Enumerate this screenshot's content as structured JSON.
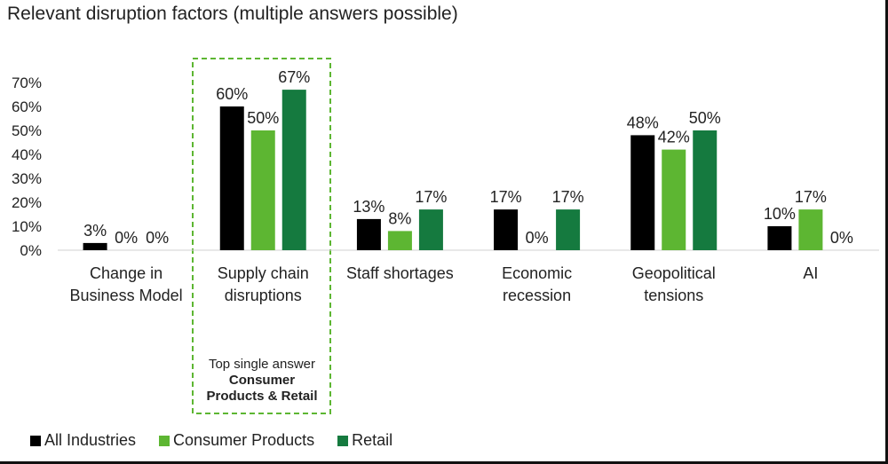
{
  "title": "Relevant disruption factors (multiple answers possible)",
  "chart_data": {
    "type": "bar",
    "title": "Relevant disruption factors (multiple answers possible)",
    "categories": [
      [
        "Change in",
        "Business Model"
      ],
      [
        "Supply chain",
        "disruptions"
      ],
      [
        "Staff shortages"
      ],
      [
        "Economic",
        "recession"
      ],
      [
        "Geopolitical",
        "tensions"
      ],
      [
        "AI"
      ]
    ],
    "series": [
      {
        "name": "All Industries",
        "color": "#000000",
        "values": [
          3,
          60,
          13,
          17,
          48,
          10
        ]
      },
      {
        "name": "Consumer Products",
        "color": "#5DB632",
        "values": [
          0,
          50,
          8,
          0,
          42,
          17
        ]
      },
      {
        "name": "Retail",
        "color": "#157A3F",
        "values": [
          0,
          67,
          17,
          17,
          50,
          0
        ]
      }
    ],
    "y_ticks": [
      "0%",
      "10%",
      "20%",
      "30%",
      "40%",
      "50%",
      "60%",
      "70%"
    ],
    "ylim": [
      0,
      70
    ],
    "value_suffix": "%",
    "legend_position": "bottom-left",
    "grid": false
  },
  "callout": {
    "line1": "Top single answer",
    "bold1": "Consumer",
    "bold2": "Products & Retail",
    "border_color": "#5DB632"
  }
}
